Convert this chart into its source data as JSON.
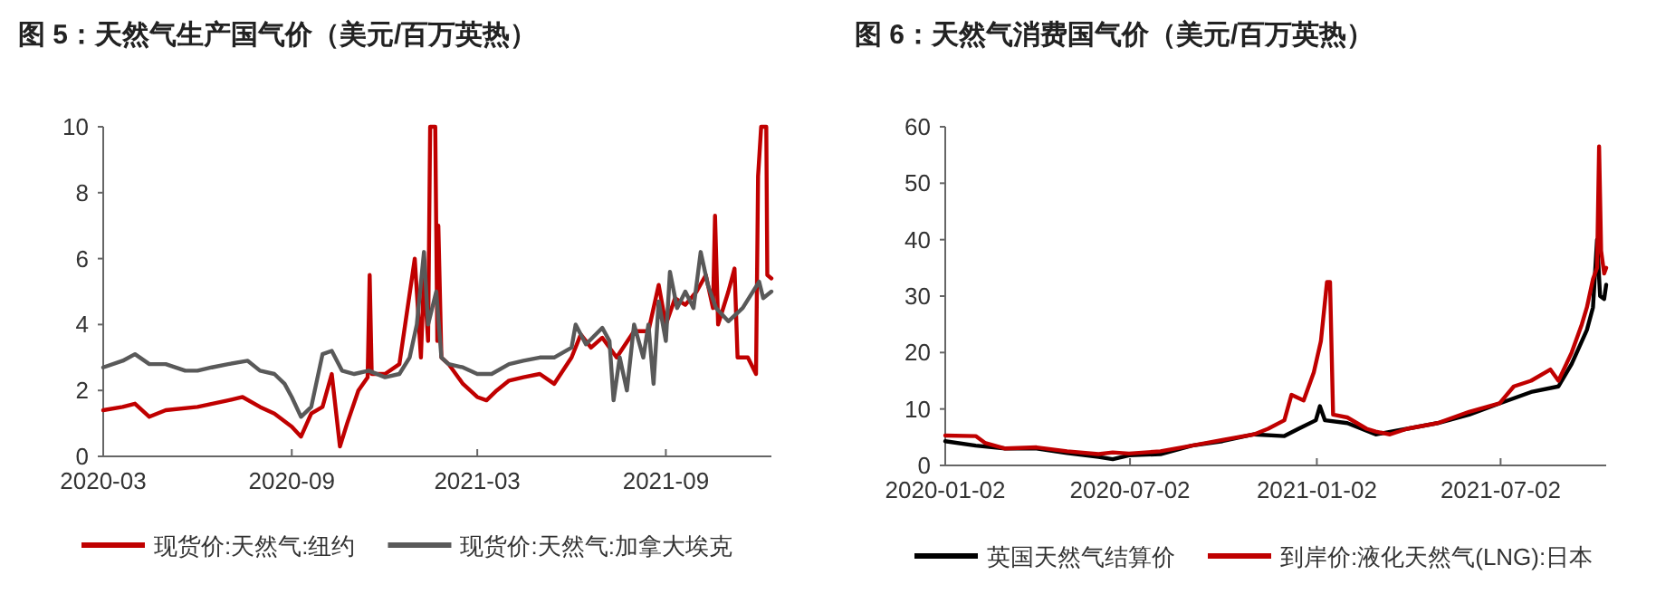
{
  "chart_data": [
    {
      "type": "line",
      "title": "图 5：天然气生产国气价（美元/百万英热）",
      "xlim": [
        "2020-03-01",
        "2021-12-13"
      ],
      "xticks": [
        "2020-03",
        "2020-09",
        "2021-03",
        "2021-09"
      ],
      "ylim": [
        0,
        10
      ],
      "yticks": [
        0,
        2,
        4,
        6,
        8,
        10
      ],
      "legend": "bottom",
      "grid": false,
      "marker": "none",
      "line_style": "solid",
      "series": [
        {
          "name": "现货价:天然气:纽约",
          "color": "#c00000",
          "x": [
            "2020-03-01",
            "2020-03-20",
            "2020-04-01",
            "2020-04-15",
            "2020-05-01",
            "2020-06-01",
            "2020-07-01",
            "2020-07-15",
            "2020-08-01",
            "2020-08-15",
            "2020-09-01",
            "2020-09-10",
            "2020-09-20",
            "2020-10-01",
            "2020-10-10",
            "2020-10-18",
            "2020-10-25",
            "2020-11-05",
            "2020-11-14",
            "2020-11-16",
            "2020-11-18",
            "2020-12-01",
            "2020-12-15",
            "2020-12-30",
            "2021-01-05",
            "2021-01-08",
            "2021-01-12",
            "2021-01-14",
            "2021-01-19",
            "2021-01-21",
            "2021-01-22",
            "2021-01-25",
            "2021-02-01",
            "2021-02-15",
            "2021-03-01",
            "2021-03-10",
            "2021-03-20",
            "2021-04-01",
            "2021-04-15",
            "2021-05-01",
            "2021-05-15",
            "2021-06-01",
            "2021-06-10",
            "2021-06-20",
            "2021-07-01",
            "2021-07-15",
            "2021-08-01",
            "2021-08-15",
            "2021-08-25",
            "2021-09-01",
            "2021-09-10",
            "2021-09-20",
            "2021-10-01",
            "2021-10-10",
            "2021-10-17",
            "2021-10-19",
            "2021-10-22",
            "2021-11-01",
            "2021-11-07",
            "2021-11-10",
            "2021-11-20",
            "2021-11-28",
            "2021-11-30",
            "2021-12-03",
            "2021-12-08",
            "2021-12-09",
            "2021-12-13"
          ],
          "values": [
            1.4,
            1.5,
            1.6,
            1.2,
            1.4,
            1.5,
            1.7,
            1.8,
            1.5,
            1.3,
            0.9,
            0.6,
            1.3,
            1.5,
            2.5,
            0.3,
            1.0,
            2.0,
            2.4,
            5.5,
            2.5,
            2.5,
            2.8,
            6.0,
            3.0,
            5.5,
            3.5,
            10,
            10,
            3.5,
            7.0,
            3.0,
            2.8,
            2.2,
            1.8,
            1.7,
            2.0,
            2.3,
            2.4,
            2.5,
            2.2,
            3.0,
            3.7,
            3.3,
            3.6,
            3.0,
            3.8,
            3.8,
            5.2,
            4.0,
            4.8,
            4.6,
            5.0,
            5.5,
            4.5,
            7.3,
            4.0,
            5.0,
            5.7,
            3.0,
            3.0,
            2.5,
            8.5,
            10,
            10,
            5.5,
            5.4
          ]
        },
        {
          "name": "现货价:天然气:加拿大埃克",
          "color": "#595959",
          "x": [
            "2020-03-01",
            "2020-03-20",
            "2020-04-01",
            "2020-04-15",
            "2020-05-01",
            "2020-05-20",
            "2020-06-01",
            "2020-06-15",
            "2020-07-01",
            "2020-07-20",
            "2020-08-01",
            "2020-08-15",
            "2020-08-25",
            "2020-09-01",
            "2020-09-10",
            "2020-09-20",
            "2020-10-01",
            "2020-10-10",
            "2020-10-20",
            "2020-11-01",
            "2020-11-15",
            "2020-12-01",
            "2020-12-15",
            "2020-12-25",
            "2021-01-01",
            "2021-01-08",
            "2021-01-12",
            "2021-01-20",
            "2021-01-25",
            "2021-02-01",
            "2021-02-15",
            "2021-03-01",
            "2021-03-15",
            "2021-04-01",
            "2021-04-15",
            "2021-05-01",
            "2021-05-15",
            "2021-06-01",
            "2021-06-05",
            "2021-06-15",
            "2021-07-01",
            "2021-07-08",
            "2021-07-12",
            "2021-07-18",
            "2021-07-25",
            "2021-08-01",
            "2021-08-10",
            "2021-08-15",
            "2021-08-20",
            "2021-08-25",
            "2021-09-01",
            "2021-09-05",
            "2021-09-12",
            "2021-09-20",
            "2021-09-28",
            "2021-10-05",
            "2021-10-12",
            "2021-10-20",
            "2021-11-01",
            "2021-11-15",
            "2021-12-01",
            "2021-12-05",
            "2021-12-13"
          ],
          "values": [
            2.7,
            2.9,
            3.1,
            2.8,
            2.8,
            2.6,
            2.6,
            2.7,
            2.8,
            2.9,
            2.6,
            2.5,
            2.2,
            1.8,
            1.2,
            1.5,
            3.1,
            3.2,
            2.6,
            2.5,
            2.6,
            2.4,
            2.5,
            3.0,
            4.0,
            6.2,
            4.0,
            5.0,
            3.0,
            2.8,
            2.7,
            2.5,
            2.5,
            2.8,
            2.9,
            3.0,
            3.0,
            3.3,
            4.0,
            3.4,
            3.9,
            3.5,
            1.7,
            3.0,
            2.0,
            4.0,
            3.0,
            4.0,
            2.2,
            4.7,
            3.5,
            5.6,
            4.5,
            5.0,
            4.5,
            6.2,
            5.2,
            4.5,
            4.1,
            4.5,
            5.3,
            4.8,
            5.0
          ]
        }
      ]
    },
    {
      "type": "line",
      "title": "图 6：天然气消费国气价（美元/百万英热）",
      "xlim": [
        "2020-01-02",
        "2021-10-14"
      ],
      "xticks": [
        "2020-01-02",
        "2020-07-02",
        "2021-01-02",
        "2021-07-02"
      ],
      "ylim": [
        0,
        60
      ],
      "yticks": [
        0,
        10,
        20,
        30,
        40,
        50,
        60
      ],
      "legend": "bottom",
      "grid": false,
      "marker": "none",
      "line_style": "solid",
      "series": [
        {
          "name": "英国天然气结算价",
          "color": "#000000",
          "x": [
            "2020-01-02",
            "2020-02-01",
            "2020-03-01",
            "2020-04-01",
            "2020-05-01",
            "2020-06-01",
            "2020-06-15",
            "2020-07-01",
            "2020-08-01",
            "2020-09-01",
            "2020-10-01",
            "2020-11-01",
            "2020-12-01",
            "2020-12-15",
            "2021-01-01",
            "2021-01-05",
            "2021-01-10",
            "2021-02-01",
            "2021-03-01",
            "2021-04-01",
            "2021-05-01",
            "2021-06-01",
            "2021-07-01",
            "2021-08-01",
            "2021-08-28",
            "2021-09-10",
            "2021-09-25",
            "2021-10-01",
            "2021-10-05",
            "2021-10-08",
            "2021-10-12",
            "2021-10-14"
          ],
          "values": [
            4.3,
            3.5,
            3,
            3,
            2.2,
            1.5,
            1.1,
            1.8,
            2,
            3.5,
            4.3,
            5.5,
            5.2,
            6.5,
            8,
            10.5,
            8,
            7.5,
            5.5,
            6.5,
            7.5,
            9,
            11,
            13,
            14,
            18,
            24,
            28,
            40,
            30,
            29.5,
            32
          ]
        },
        {
          "name": "到岸价:液化天然气(LNG):日本",
          "color": "#c00000",
          "x": [
            "2020-01-02",
            "2020-02-01",
            "2020-02-10",
            "2020-03-01",
            "2020-04-01",
            "2020-05-01",
            "2020-06-01",
            "2020-06-15",
            "2020-07-01",
            "2020-08-01",
            "2020-09-01",
            "2020-10-01",
            "2020-11-01",
            "2020-11-15",
            "2020-12-01",
            "2020-12-08",
            "2020-12-20",
            "2020-12-30",
            "2021-01-06",
            "2021-01-12",
            "2021-01-15",
            "2021-01-18",
            "2021-02-01",
            "2021-02-20",
            "2021-03-01",
            "2021-03-15",
            "2021-04-01",
            "2021-05-01",
            "2021-06-01",
            "2021-07-01",
            "2021-07-15",
            "2021-08-01",
            "2021-08-20",
            "2021-08-28",
            "2021-09-10",
            "2021-09-20",
            "2021-09-25",
            "2021-10-01",
            "2021-10-05",
            "2021-10-07",
            "2021-10-09",
            "2021-10-12",
            "2021-10-14"
          ],
          "values": [
            5.3,
            5.2,
            4,
            3,
            3.2,
            2.5,
            2,
            2.3,
            2.1,
            2.5,
            3.5,
            4.5,
            5.5,
            6.5,
            8,
            12.5,
            11.5,
            16.5,
            22,
            32.5,
            32.5,
            9,
            8.5,
            6.5,
            6,
            5.5,
            6.5,
            7.5,
            9.5,
            11,
            14,
            15,
            17,
            15,
            20,
            25,
            28,
            33,
            35,
            56.5,
            38,
            34,
            35
          ]
        }
      ]
    }
  ]
}
